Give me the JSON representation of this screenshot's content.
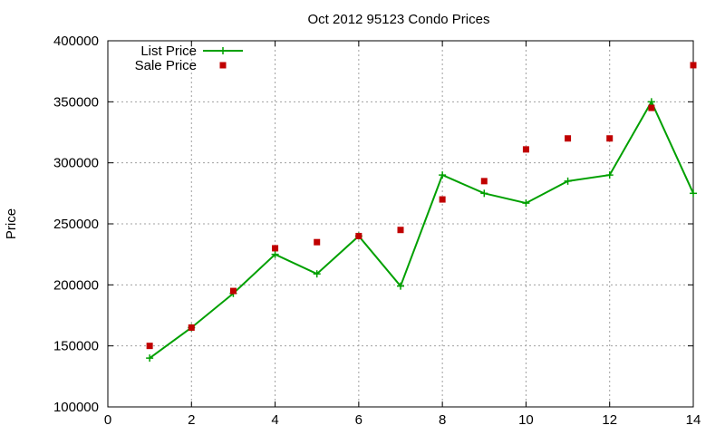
{
  "chart_data": {
    "type": "line",
    "title": "Oct 2012 95123 Condo Prices",
    "xlabel": "",
    "ylabel": "Price",
    "xlim": [
      0,
      14
    ],
    "ylim": [
      100000,
      400000
    ],
    "xticks": [
      0,
      2,
      4,
      6,
      8,
      10,
      12,
      14
    ],
    "yticks": [
      100000,
      150000,
      200000,
      250000,
      300000,
      350000,
      400000
    ],
    "grid": true,
    "legend_position": "top-left",
    "series": [
      {
        "name": "List Price",
        "style": "line-points",
        "marker": "plus",
        "color": "#00a000",
        "x": [
          1,
          2,
          3,
          4,
          5,
          6,
          7,
          8,
          9,
          10,
          11,
          12,
          13,
          14
        ],
        "y": [
          140000,
          165000,
          193000,
          225000,
          209000,
          240000,
          199000,
          290000,
          275000,
          267000,
          285000,
          290000,
          350000,
          275000
        ]
      },
      {
        "name": "Sale Price",
        "style": "points",
        "marker": "square",
        "color": "#c00000",
        "x": [
          1,
          2,
          3,
          4,
          5,
          6,
          7,
          8,
          9,
          10,
          11,
          12,
          13,
          14
        ],
        "y": [
          150000,
          165000,
          195000,
          230000,
          235000,
          240000,
          245000,
          270000,
          285000,
          311000,
          320000,
          320000,
          345000,
          380000
        ]
      }
    ]
  }
}
